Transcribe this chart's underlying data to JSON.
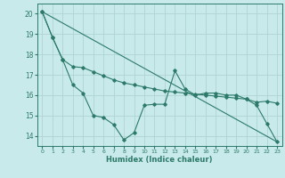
{
  "xlabel": "Humidex (Indice chaleur)",
  "ylabel": "",
  "bg_color": "#c8eaea",
  "grid_color": "#b0d4d4",
  "line_color": "#2d7a6a",
  "xlim": [
    -0.5,
    23.5
  ],
  "ylim": [
    13.5,
    20.5
  ],
  "yticks": [
    14,
    15,
    16,
    17,
    18,
    19,
    20
  ],
  "xticks": [
    0,
    1,
    2,
    3,
    4,
    5,
    6,
    7,
    8,
    9,
    10,
    11,
    12,
    13,
    14,
    15,
    16,
    17,
    18,
    19,
    20,
    21,
    22,
    23
  ],
  "line1_x": [
    0,
    1,
    2,
    3,
    4,
    5,
    6,
    7,
    8,
    9,
    10,
    11,
    12,
    13,
    14,
    15,
    16,
    17,
    18,
    19,
    20,
    21,
    22,
    23
  ],
  "line1_y": [
    20.1,
    18.85,
    17.75,
    17.4,
    17.35,
    17.15,
    16.95,
    16.75,
    16.6,
    16.5,
    16.4,
    16.3,
    16.2,
    16.15,
    16.1,
    16.05,
    16.0,
    15.95,
    15.9,
    15.85,
    15.8,
    15.65,
    15.7,
    15.6
  ],
  "line2_x": [
    0,
    1,
    2,
    3,
    4,
    5,
    6,
    7,
    8,
    9,
    10,
    11,
    12,
    13,
    14,
    15,
    16,
    17,
    18,
    19,
    20,
    21,
    22,
    23
  ],
  "line2_y": [
    20.1,
    18.85,
    17.75,
    16.5,
    16.1,
    15.0,
    14.9,
    14.55,
    13.8,
    14.15,
    15.5,
    15.55,
    15.55,
    17.2,
    16.3,
    16.0,
    16.1,
    16.1,
    16.0,
    16.0,
    15.8,
    15.5,
    14.6,
    13.7
  ],
  "line3_x": [
    0,
    23
  ],
  "line3_y": [
    20.1,
    13.7
  ]
}
